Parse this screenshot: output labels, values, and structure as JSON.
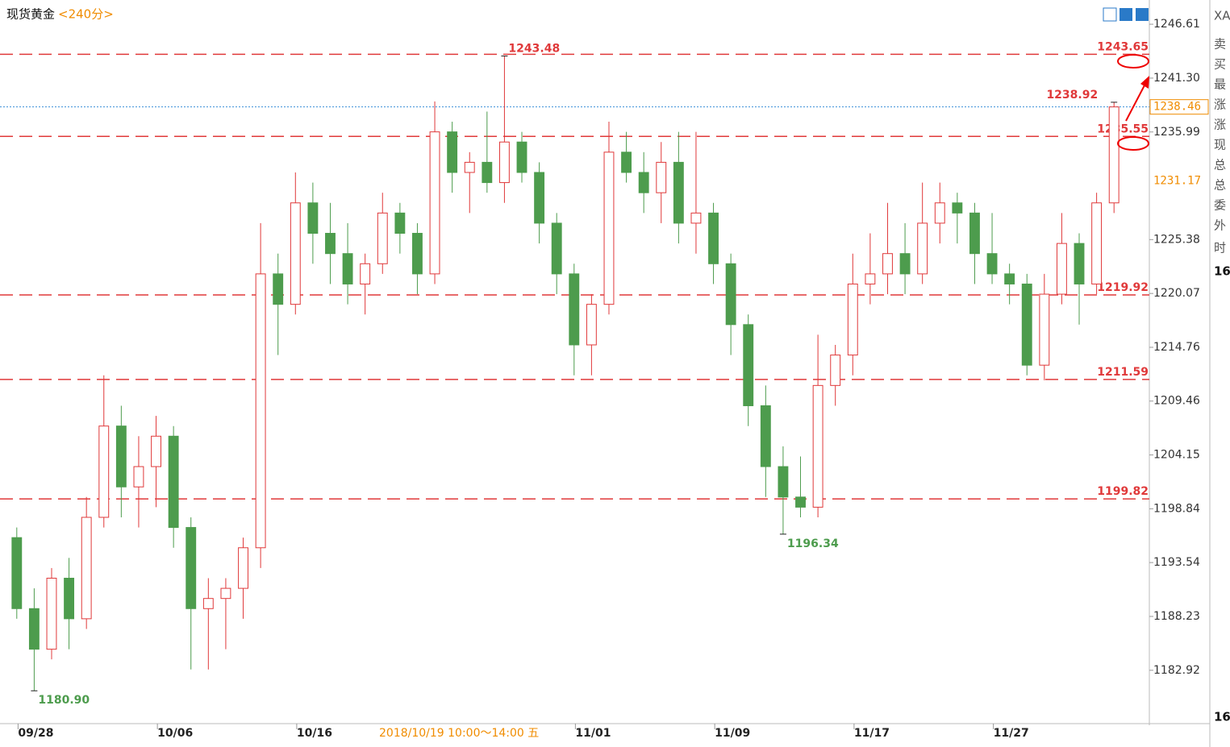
{
  "header": {
    "title": "现货黄金",
    "period": "<240分>"
  },
  "chart_data": {
    "type": "candlestick",
    "categories": [
      null,
      "09/28",
      null,
      null,
      null,
      null,
      null,
      null,
      null,
      "10/06",
      null,
      null,
      null,
      null,
      null,
      null,
      null,
      "10/16",
      null,
      null,
      null,
      null,
      null,
      null,
      null,
      null,
      null,
      null,
      null,
      null,
      null,
      null,
      null,
      "11/01",
      null,
      null,
      null,
      null,
      null,
      null,
      null,
      "11/09",
      null,
      null,
      null,
      null,
      null,
      null,
      null,
      "11/17",
      null,
      null,
      null,
      null,
      null,
      null,
      null,
      "11/27",
      null,
      null,
      null,
      null,
      null,
      null
    ],
    "open": [
      1196,
      1189,
      1185,
      1192,
      1188,
      1198,
      1207,
      1201,
      1203,
      1206,
      1197,
      1189,
      1190,
      1191,
      1195,
      1222,
      1219,
      1229,
      1226,
      1224,
      1221,
      1223,
      1228,
      1226,
      1222,
      1236,
      1232,
      1233,
      1231,
      1235,
      1232,
      1227,
      1222,
      1215,
      1219,
      1234,
      1232,
      1230,
      1233,
      1227,
      1228,
      1223,
      1217,
      1209,
      1203,
      1200,
      1199,
      1211,
      1214,
      1221,
      1222,
      1224,
      1222,
      1227,
      1229,
      1228,
      1224,
      1222,
      1221,
      1213,
      1220,
      1225,
      1221,
      1229
    ],
    "high": [
      1197,
      1191,
      1193,
      1194,
      1200,
      1212,
      1209,
      1206,
      1208,
      1207,
      1198,
      1192,
      1192,
      1196,
      1227,
      1224,
      1232,
      1231,
      1229,
      1227,
      1224,
      1230,
      1229,
      1227,
      1239,
      1237,
      1234,
      1238,
      1243.48,
      1236,
      1233,
      1228,
      1223,
      1220,
      1237,
      1236,
      1234,
      1235,
      1236,
      1236,
      1229,
      1224,
      1218,
      1211,
      1205,
      1204,
      1216,
      1215,
      1224,
      1226,
      1229,
      1227,
      1231,
      1231,
      1230,
      1229,
      1228,
      1223,
      1222,
      1222,
      1228,
      1226,
      1230,
      1238.92
    ],
    "low": [
      1188,
      1180.9,
      1184,
      1185,
      1187,
      1197,
      1198,
      1197,
      1199,
      1195,
      1183,
      1183,
      1185,
      1188,
      1193,
      1214,
      1218,
      1223,
      1221,
      1219,
      1218,
      1222,
      1224,
      1220,
      1221,
      1230,
      1228,
      1230,
      1229,
      1231,
      1225,
      1220,
      1212,
      1212,
      1218,
      1231,
      1228,
      1227,
      1225,
      1224,
      1221,
      1214,
      1207,
      1200,
      1196.34,
      1198,
      1198,
      1209,
      1212,
      1219,
      1220,
      1220,
      1221,
      1225,
      1225,
      1221,
      1221,
      1219,
      1212,
      1211.5,
      1219,
      1217,
      1220,
      1228
    ],
    "close": [
      1189,
      1185,
      1192,
      1188,
      1198,
      1207,
      1201,
      1203,
      1206,
      1197,
      1189,
      1190,
      1191,
      1195,
      1222,
      1219,
      1229,
      1226,
      1224,
      1221,
      1223,
      1228,
      1226,
      1222,
      1236,
      1232,
      1233,
      1231,
      1235,
      1232,
      1227,
      1222,
      1215,
      1219,
      1234,
      1232,
      1230,
      1233,
      1227,
      1228,
      1223,
      1217,
      1209,
      1203,
      1200,
      1199,
      1211,
      1214,
      1221,
      1222,
      1224,
      1222,
      1227,
      1229,
      1228,
      1224,
      1222,
      1221,
      1213,
      1220,
      1225,
      1221,
      1229,
      1238.46
    ],
    "up_color": "#e0393a",
    "down_color": "#4d9c4d",
    "ylim": [
      1177.9,
      1249.0
    ],
    "yticks": [
      1246.61,
      {
        "value": 1241.3,
        "label": "1241.30"
      },
      1235.99,
      1225.38,
      1220.07,
      1214.76,
      1209.46,
      1204.15,
      1198.84,
      1193.54,
      1188.23,
      1182.92
    ],
    "levels": {
      "values": [
        1243.65,
        1235.55,
        1219.92,
        1211.59,
        1199.82
      ],
      "color": "#e0393a"
    },
    "current_price": {
      "value": 1238.46,
      "color": "#3a8fd8"
    },
    "reference_price": 1231.17,
    "annotations": [
      "1243.48",
      "1238.92",
      "1196.34",
      "1180.90"
    ],
    "crosshair_label": "2018/10/19 10:00～14:00 五"
  },
  "sidebar": [
    "XA",
    "卖",
    "买",
    "最",
    "涨",
    "涨",
    "现",
    "总",
    "总",
    "委",
    "外",
    "时",
    "16",
    "16"
  ]
}
